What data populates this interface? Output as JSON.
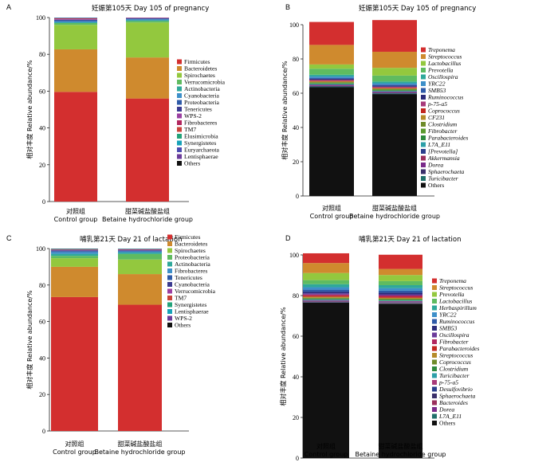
{
  "chart_data": [
    {
      "type": "bar",
      "stacked": true,
      "panel_label": "A",
      "title": "妊娠第105天 Day 105 of pregnancy",
      "ylabel": "相对丰度 Relative abundance/%",
      "ylim": [
        0,
        100
      ],
      "yticks": [
        "0",
        "20",
        "40",
        "60",
        "80",
        "100"
      ],
      "categories": [
        {
          "cn": "对照组",
          "en": "Control group"
        },
        {
          "cn": "甜菜碱盐酸盐组",
          "en": "Betaine hydrochloride group"
        }
      ],
      "legend_italic": false,
      "series": [
        {
          "name": "Firmicutes",
          "color": "#d32f2f",
          "values": [
            59.6,
            56.0
          ]
        },
        {
          "name": "Bacteroidetes",
          "color": "#cf8a2e",
          "values": [
            23.1,
            22.3
          ]
        },
        {
          "name": "Spirochaetes",
          "color": "#93c83e",
          "values": [
            13.3,
            19.0
          ]
        },
        {
          "name": "Verrucomicrobia",
          "color": "#5fbb60",
          "values": [
            1.0,
            0.8
          ]
        },
        {
          "name": "Actinobacteria",
          "color": "#2fa89a",
          "values": [
            0.4,
            0.4
          ]
        },
        {
          "name": "Cyanobacteria",
          "color": "#3d8fc9",
          "values": [
            0.6,
            0.5
          ]
        },
        {
          "name": "Proteobacteria",
          "color": "#2e5aa8",
          "values": [
            0.5,
            0.4
          ]
        },
        {
          "name": "Tenericutes",
          "color": "#3a3a90",
          "values": [
            0.3,
            0.3
          ]
        },
        {
          "name": "WPS-2",
          "color": "#9b3fa1",
          "values": [
            0.3,
            0.2
          ]
        },
        {
          "name": "Fibrobacteres",
          "color": "#b2265e",
          "values": [
            0.3,
            0.1
          ]
        },
        {
          "name": "TM7",
          "color": "#c9433a",
          "values": [
            0.2,
            0.0
          ]
        },
        {
          "name": "Elusimicrobia",
          "color": "#23a37a",
          "values": [
            0.1,
            0.0
          ]
        },
        {
          "name": "Synergistetes",
          "color": "#17a2b8",
          "values": [
            0.1,
            0.0
          ]
        },
        {
          "name": "Euryarchaeota",
          "color": "#4b4bb0",
          "values": [
            0.1,
            0.0
          ]
        },
        {
          "name": "Lentisphaerae",
          "color": "#6b3b9a",
          "values": [
            0.1,
            0.0
          ]
        },
        {
          "name": "Others",
          "color": "#111111",
          "values": [
            0.0,
            0.0
          ]
        }
      ]
    },
    {
      "type": "bar",
      "stacked": true,
      "panel_label": "B",
      "title": "妊娠第105天 Day 105 of pregnancy",
      "ylabel": "相对丰度 Relative abundance/%",
      "ylim": [
        0,
        100
      ],
      "yticks": [
        "0",
        "20",
        "40",
        "60",
        "80",
        "100"
      ],
      "categories": [
        {
          "cn": "对照组",
          "en": "Control group"
        },
        {
          "cn": "甜菜碱盐酸盐组",
          "en": "Betaine hydrochloride group"
        }
      ],
      "legend_italic": true,
      "series": [
        {
          "name": "Others",
          "color": "#111111",
          "values": [
            63.5,
            59.5
          ]
        },
        {
          "name": "Turicibacter",
          "color": "#1f6f6a",
          "values": [
            0.4,
            0.4
          ]
        },
        {
          "name": "Sphaerochaeta",
          "color": "#3a2e6a",
          "values": [
            0.3,
            0.3
          ]
        },
        {
          "name": "Dorea",
          "color": "#7a2a8a",
          "values": [
            0.3,
            0.3
          ]
        },
        {
          "name": "Akkermansia",
          "color": "#9a2f5c",
          "values": [
            0.3,
            0.3
          ]
        },
        {
          "name": "[Prevotella]",
          "color": "#2a3e8c",
          "values": [
            0.3,
            0.3
          ]
        },
        {
          "name": "L7A_E11",
          "color": "#2c9fa8",
          "values": [
            0.3,
            0.3
          ]
        },
        {
          "name": "Parabacteroides",
          "color": "#2d8a3e",
          "values": [
            0.3,
            0.3
          ]
        },
        {
          "name": "Fibrobacter",
          "color": "#5a9a2e",
          "values": [
            0.4,
            0.4
          ]
        },
        {
          "name": "Clostridium",
          "color": "#6e8b2a",
          "values": [
            0.4,
            0.4
          ]
        },
        {
          "name": "CF231",
          "color": "#b58b2a",
          "values": [
            0.4,
            0.4
          ]
        },
        {
          "name": "Coprococcus",
          "color": "#c2261f",
          "values": [
            0.4,
            0.4
          ]
        },
        {
          "name": "p-75-a5",
          "color": "#a83a7a",
          "values": [
            0.5,
            0.5
          ]
        },
        {
          "name": "Ruminococcus",
          "color": "#2b2b7a",
          "values": [
            0.6,
            0.6
          ]
        },
        {
          "name": "SMB53",
          "color": "#2e5aa8",
          "values": [
            0.6,
            0.6
          ]
        },
        {
          "name": "YRC22",
          "color": "#3d8fc9",
          "values": [
            0.8,
            0.8
          ]
        },
        {
          "name": "Oscillospira",
          "color": "#2fa89a",
          "values": [
            1.0,
            1.0
          ]
        },
        {
          "name": "Prevotella",
          "color": "#5fbb60",
          "values": [
            3.5,
            3.5
          ]
        },
        {
          "name": "Lactobacillus",
          "color": "#93c83e",
          "values": [
            2.5,
            4.5
          ]
        },
        {
          "name": "Streptococcus",
          "color": "#cf8a2e",
          "values": [
            11.4,
            9.4
          ]
        },
        {
          "name": "Treponema",
          "color": "#d32f2f",
          "values": [
            13.4,
            18.5
          ]
        }
      ]
    },
    {
      "type": "bar",
      "stacked": true,
      "panel_label": "C",
      "title": "哺乳第21天 Day 21 of lactation",
      "ylabel": "相对丰度 Relative abundance/%",
      "ylim": [
        0,
        100
      ],
      "yticks": [
        "0",
        "20",
        "40",
        "60",
        "80",
        "100"
      ],
      "categories": [
        {
          "cn": "对照组",
          "en": "Control group"
        },
        {
          "cn": "甜菜碱盐酸盐组",
          "en": "Betaine hydrochloride group"
        }
      ],
      "legend_italic": false,
      "series": [
        {
          "name": "Firmicutes",
          "color": "#d32f2f",
          "values": [
            73.4,
            69.2
          ]
        },
        {
          "name": "Bacteroidetes",
          "color": "#cf8a2e",
          "values": [
            16.6,
            16.8
          ]
        },
        {
          "name": "Spirochaetes",
          "color": "#93c83e",
          "values": [
            4.7,
            8.0
          ]
        },
        {
          "name": "Proteobacteria",
          "color": "#5fbb60",
          "values": [
            1.3,
            3.0
          ]
        },
        {
          "name": "Actinobacteria",
          "color": "#2fa89a",
          "values": [
            1.1,
            0.8
          ]
        },
        {
          "name": "Fibrobacteres",
          "color": "#3d8fc9",
          "values": [
            1.0,
            0.6
          ]
        },
        {
          "name": "Tenericutes",
          "color": "#2e5aa8",
          "values": [
            0.5,
            0.4
          ]
        },
        {
          "name": "Cyanobacteria",
          "color": "#3a3a90",
          "values": [
            0.4,
            0.3
          ]
        },
        {
          "name": "Verrucomicrobia",
          "color": "#9b3fa1",
          "values": [
            0.3,
            0.3
          ]
        },
        {
          "name": "TM7",
          "color": "#c9433a",
          "values": [
            0.2,
            0.2
          ]
        },
        {
          "name": "Synergistetes",
          "color": "#23a37a",
          "values": [
            0.2,
            0.2
          ]
        },
        {
          "name": "Lentisphaerae",
          "color": "#17a2b8",
          "values": [
            0.1,
            0.1
          ]
        },
        {
          "name": "WPS-2",
          "color": "#6b3b9a",
          "values": [
            0.1,
            0.1
          ]
        },
        {
          "name": "Others",
          "color": "#111111",
          "values": [
            0.1,
            0.0
          ]
        }
      ]
    },
    {
      "type": "bar",
      "stacked": true,
      "panel_label": "D",
      "title": "哺乳第21天 Day 21 of lactation",
      "ylabel": "相对丰度 Relative abundance/%",
      "ylim": [
        0,
        100
      ],
      "yticks": [
        "0",
        "20",
        "40",
        "60",
        "80",
        "100"
      ],
      "categories": [
        {
          "cn": "对照组",
          "en": "Control group"
        },
        {
          "cn": "甜菜碱盐酸盐组",
          "en": "Betaine hydrochloride group"
        }
      ],
      "legend_italic": true,
      "series": [
        {
          "name": "Others",
          "color": "#111111",
          "values": [
            76.5,
            76.0
          ]
        },
        {
          "name": "L7A_E11",
          "color": "#1f6f6a",
          "values": [
            0.2,
            0.2
          ]
        },
        {
          "name": "Dorea",
          "color": "#7a2a8a",
          "values": [
            0.2,
            0.2
          ]
        },
        {
          "name": "Bacteroides",
          "color": "#9a2f5c",
          "values": [
            0.2,
            0.2
          ]
        },
        {
          "name": "Sphaerochaeta",
          "color": "#3a2e6a",
          "values": [
            0.2,
            0.2
          ]
        },
        {
          "name": "Desulfovibrio",
          "color": "#2a3e8c",
          "values": [
            0.2,
            0.2
          ]
        },
        {
          "name": "p-75-a5",
          "color": "#a83a7a",
          "values": [
            0.3,
            0.3
          ]
        },
        {
          "name": "Turicibacter",
          "color": "#2c9fa8",
          "values": [
            0.3,
            0.3
          ]
        },
        {
          "name": "Clostridium",
          "color": "#2d8a3e",
          "values": [
            0.4,
            0.4
          ]
        },
        {
          "name": "Coprococcus",
          "color": "#6e8b2a",
          "values": [
            0.4,
            0.4
          ]
        },
        {
          "name": "Streptococcus",
          "color": "#b58b2a",
          "values": [
            0.5,
            0.5
          ]
        },
        {
          "name": "Parabacteroides",
          "color": "#c2261f",
          "values": [
            0.5,
            0.5
          ]
        },
        {
          "name": "Fibrobacter",
          "color": "#b2265e",
          "values": [
            0.6,
            0.6
          ]
        },
        {
          "name": "Oscillospira",
          "color": "#6b3b9a",
          "values": [
            0.6,
            0.6
          ]
        },
        {
          "name": "SMB53",
          "color": "#2b2b7a",
          "values": [
            0.8,
            0.8
          ]
        },
        {
          "name": "Ruminococcus",
          "color": "#2e5aa8",
          "values": [
            1.0,
            1.0
          ]
        },
        {
          "name": "YRC22",
          "color": "#3d8fc9",
          "values": [
            1.2,
            1.2
          ]
        },
        {
          "name": "Herbaspirillum",
          "color": "#2fa89a",
          "values": [
            1.5,
            1.5
          ]
        },
        {
          "name": "Lactobacillus",
          "color": "#5fbb60",
          "values": [
            2.0,
            2.0
          ]
        },
        {
          "name": "Prevotella",
          "color": "#93c83e",
          "values": [
            3.5,
            3.0
          ]
        },
        {
          "name": "Streptococcus",
          "color": "#cf8a2e",
          "values": [
            4.9,
            3.0
          ]
        },
        {
          "name": "Treponema",
          "color": "#d32f2f",
          "values": [
            4.8,
            7.0
          ]
        }
      ]
    }
  ]
}
